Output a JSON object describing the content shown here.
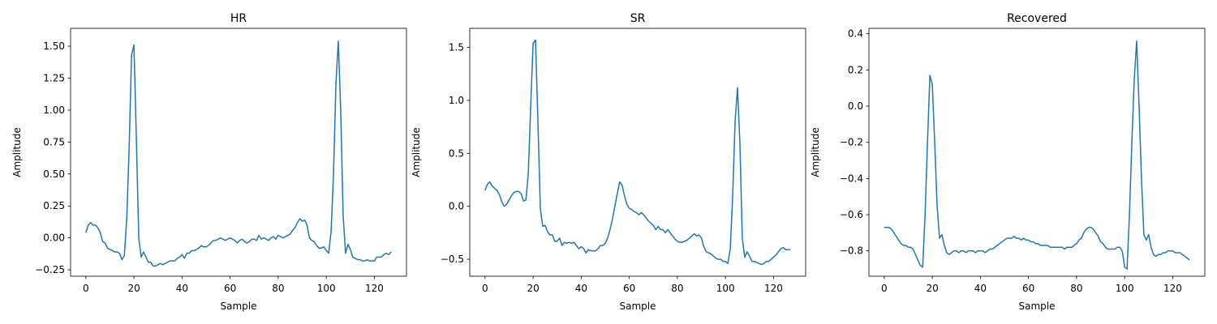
{
  "chart_data": [
    {
      "type": "line",
      "title": "HR",
      "xlabel": "Sample",
      "ylabel": "Amplitude",
      "color": "#1f77b4",
      "xlim": [
        -6.35,
        133.35
      ],
      "ylim": [
        -0.3,
        1.64
      ],
      "xticks": [
        0,
        20,
        40,
        60,
        80,
        100,
        120
      ],
      "yticks": [
        {
          "value": -0.25,
          "label": "−0.25"
        },
        {
          "value": 0,
          "label": "0.00"
        },
        0.25,
        {
          "value": 0.5,
          "label": "0.50"
        },
        0.75,
        {
          "value": 1,
          "label": "1.00"
        },
        1.25,
        {
          "value": 1.5,
          "label": "1.50"
        }
      ],
      "x": [
        0,
        1,
        2,
        3,
        4,
        5,
        6,
        7,
        8,
        9,
        10,
        11,
        12,
        13,
        14,
        15,
        16,
        17,
        18,
        19,
        20,
        21,
        22,
        23,
        24,
        25,
        26,
        27,
        28,
        29,
        30,
        31,
        32,
        33,
        34,
        35,
        36,
        37,
        38,
        39,
        40,
        41,
        42,
        43,
        44,
        45,
        46,
        47,
        48,
        49,
        50,
        51,
        52,
        53,
        54,
        55,
        56,
        57,
        58,
        59,
        60,
        61,
        62,
        63,
        64,
        65,
        66,
        67,
        68,
        69,
        70,
        71,
        72,
        73,
        74,
        75,
        76,
        77,
        78,
        79,
        80,
        81,
        82,
        83,
        84,
        85,
        86,
        87,
        88,
        89,
        90,
        91,
        92,
        93,
        94,
        95,
        96,
        97,
        98,
        99,
        100,
        101,
        102,
        103,
        104,
        105,
        106,
        107,
        108,
        109,
        110,
        111,
        112,
        113,
        114,
        115,
        116,
        117,
        118,
        119,
        120,
        121,
        122,
        123,
        124,
        125,
        126,
        127
      ],
      "values": [
        0.04,
        0.1,
        0.12,
        0.1,
        0.1,
        0.08,
        0.04,
        -0.03,
        -0.04,
        -0.08,
        -0.09,
        -0.1,
        -0.11,
        -0.11,
        -0.12,
        -0.17,
        -0.14,
        0.15,
        0.7,
        1.43,
        1.51,
        0.78,
        0.0,
        -0.15,
        -0.11,
        -0.15,
        -0.19,
        -0.19,
        -0.22,
        -0.22,
        -0.21,
        -0.2,
        -0.21,
        -0.2,
        -0.19,
        -0.18,
        -0.18,
        -0.18,
        -0.16,
        -0.15,
        -0.13,
        -0.16,
        -0.12,
        -0.12,
        -0.1,
        -0.1,
        -0.09,
        -0.08,
        -0.06,
        -0.07,
        -0.07,
        -0.06,
        -0.04,
        -0.02,
        -0.02,
        -0.01,
        0.0,
        -0.01,
        -0.02,
        -0.01,
        0.0,
        -0.01,
        -0.02,
        -0.04,
        -0.02,
        -0.01,
        -0.03,
        -0.04,
        -0.03,
        -0.01,
        -0.01,
        -0.02,
        0.02,
        -0.01,
        0.0,
        -0.01,
        -0.02,
        0.0,
        0.01,
        -0.01,
        0.02,
        0.01,
        0.0,
        0.01,
        0.02,
        0.03,
        0.06,
        0.08,
        0.12,
        0.15,
        0.13,
        0.14,
        0.1,
        0.0,
        -0.02,
        -0.03,
        -0.06,
        -0.08,
        -0.08,
        -0.07,
        -0.1,
        -0.12,
        0.05,
        0.5,
        1.2,
        1.54,
        1.0,
        0.18,
        -0.12,
        -0.05,
        -0.09,
        -0.15,
        -0.16,
        -0.17,
        -0.17,
        -0.18,
        -0.18,
        -0.17,
        -0.18,
        -0.18,
        -0.18,
        -0.15,
        -0.15,
        -0.15,
        -0.13,
        -0.12,
        -0.13,
        -0.11
      ]
    },
    {
      "type": "line",
      "title": "SR",
      "xlabel": "Sample",
      "ylabel": "Amplitude",
      "color": "#1f77b4",
      "xlim": [
        -6.35,
        133.35
      ],
      "ylim": [
        -0.66,
        1.68
      ],
      "xticks": [
        0,
        20,
        40,
        60,
        80,
        100,
        120
      ],
      "yticks": [
        {
          "value": -0.5,
          "label": "−0.5"
        },
        {
          "value": 0,
          "label": "0.0"
        },
        0.5,
        {
          "value": 1,
          "label": "1.0"
        },
        1.5
      ],
      "x": [
        0,
        1,
        2,
        3,
        4,
        5,
        6,
        7,
        8,
        9,
        10,
        11,
        12,
        13,
        14,
        15,
        16,
        17,
        18,
        19,
        20,
        21,
        22,
        23,
        24,
        25,
        26,
        27,
        28,
        29,
        30,
        31,
        32,
        33,
        34,
        35,
        36,
        37,
        38,
        39,
        40,
        41,
        42,
        43,
        44,
        45,
        46,
        47,
        48,
        49,
        50,
        51,
        52,
        53,
        54,
        55,
        56,
        57,
        58,
        59,
        60,
        61,
        62,
        63,
        64,
        65,
        66,
        67,
        68,
        69,
        70,
        71,
        72,
        73,
        74,
        75,
        76,
        77,
        78,
        79,
        80,
        81,
        82,
        83,
        84,
        85,
        86,
        87,
        88,
        89,
        90,
        91,
        92,
        93,
        94,
        95,
        96,
        97,
        98,
        99,
        100,
        101,
        102,
        103,
        104,
        105,
        106,
        107,
        108,
        109,
        110,
        111,
        112,
        113,
        114,
        115,
        116,
        117,
        118,
        119,
        120,
        121,
        122,
        123,
        124,
        125,
        126,
        127
      ],
      "values": [
        0.15,
        0.21,
        0.23,
        0.19,
        0.17,
        0.15,
        0.11,
        0.04,
        0.0,
        0.02,
        0.06,
        0.1,
        0.13,
        0.14,
        0.14,
        0.12,
        0.05,
        0.06,
        0.31,
        0.95,
        1.54,
        1.57,
        0.8,
        -0.02,
        -0.19,
        -0.18,
        -0.24,
        -0.27,
        -0.27,
        -0.33,
        -0.33,
        -0.3,
        -0.37,
        -0.34,
        -0.35,
        -0.34,
        -0.35,
        -0.34,
        -0.37,
        -0.4,
        -0.38,
        -0.4,
        -0.44,
        -0.41,
        -0.42,
        -0.42,
        -0.42,
        -0.4,
        -0.37,
        -0.37,
        -0.35,
        -0.3,
        -0.22,
        -0.12,
        0.0,
        0.12,
        0.23,
        0.2,
        0.1,
        0.02,
        -0.02,
        -0.03,
        -0.05,
        -0.06,
        -0.08,
        -0.06,
        -0.08,
        -0.11,
        -0.14,
        -0.16,
        -0.18,
        -0.22,
        -0.19,
        -0.22,
        -0.22,
        -0.25,
        -0.22,
        -0.25,
        -0.28,
        -0.31,
        -0.33,
        -0.34,
        -0.34,
        -0.33,
        -0.32,
        -0.3,
        -0.28,
        -0.26,
        -0.28,
        -0.27,
        -0.3,
        -0.38,
        -0.43,
        -0.44,
        -0.45,
        -0.47,
        -0.49,
        -0.5,
        -0.5,
        -0.52,
        -0.52,
        -0.54,
        -0.4,
        0.1,
        0.8,
        1.12,
        0.6,
        -0.3,
        -0.48,
        -0.43,
        -0.47,
        -0.52,
        -0.52,
        -0.53,
        -0.54,
        -0.55,
        -0.54,
        -0.52,
        -0.52,
        -0.5,
        -0.48,
        -0.46,
        -0.43,
        -0.4,
        -0.39,
        -0.41,
        -0.41,
        -0.41
      ]
    },
    {
      "type": "line",
      "title": "Recovered",
      "xlabel": "Sample",
      "ylabel": "Amplitude",
      "color": "#1f77b4",
      "xlim": [
        -6.35,
        133.35
      ],
      "ylim": [
        -0.94,
        0.43
      ],
      "xticks": [
        0,
        20,
        40,
        60,
        80,
        100,
        120
      ],
      "yticks": [
        {
          "value": -0.8,
          "label": "−0.8"
        },
        {
          "value": -0.6,
          "label": "−0.6"
        },
        {
          "value": -0.4,
          "label": "−0.4"
        },
        {
          "value": -0.2,
          "label": "−0.2"
        },
        {
          "value": 0,
          "label": "0.0"
        },
        0.2,
        0.4
      ],
      "x": [
        0,
        1,
        2,
        3,
        4,
        5,
        6,
        7,
        8,
        9,
        10,
        11,
        12,
        13,
        14,
        15,
        16,
        17,
        18,
        19,
        20,
        21,
        22,
        23,
        24,
        25,
        26,
        27,
        28,
        29,
        30,
        31,
        32,
        33,
        34,
        35,
        36,
        37,
        38,
        39,
        40,
        41,
        42,
        43,
        44,
        45,
        46,
        47,
        48,
        49,
        50,
        51,
        52,
        53,
        54,
        55,
        56,
        57,
        58,
        59,
        60,
        61,
        62,
        63,
        64,
        65,
        66,
        67,
        68,
        69,
        70,
        71,
        72,
        73,
        74,
        75,
        76,
        77,
        78,
        79,
        80,
        81,
        82,
        83,
        84,
        85,
        86,
        87,
        88,
        89,
        90,
        91,
        92,
        93,
        94,
        95,
        96,
        97,
        98,
        99,
        100,
        101,
        102,
        103,
        104,
        105,
        106,
        107,
        108,
        109,
        110,
        111,
        112,
        113,
        114,
        115,
        116,
        117,
        118,
        119,
        120,
        121,
        122,
        123,
        124,
        125,
        126,
        127
      ],
      "values": [
        -0.67,
        -0.67,
        -0.67,
        -0.68,
        -0.7,
        -0.72,
        -0.74,
        -0.76,
        -0.77,
        -0.77,
        -0.78,
        -0.78,
        -0.79,
        -0.82,
        -0.85,
        -0.88,
        -0.89,
        -0.6,
        -0.2,
        0.17,
        0.12,
        -0.2,
        -0.55,
        -0.73,
        -0.71,
        -0.77,
        -0.81,
        -0.82,
        -0.81,
        -0.8,
        -0.8,
        -0.81,
        -0.8,
        -0.8,
        -0.81,
        -0.8,
        -0.8,
        -0.8,
        -0.81,
        -0.8,
        -0.8,
        -0.8,
        -0.81,
        -0.8,
        -0.79,
        -0.79,
        -0.78,
        -0.77,
        -0.76,
        -0.75,
        -0.74,
        -0.73,
        -0.73,
        -0.73,
        -0.72,
        -0.73,
        -0.73,
        -0.74,
        -0.73,
        -0.74,
        -0.74,
        -0.75,
        -0.75,
        -0.76,
        -0.76,
        -0.77,
        -0.77,
        -0.77,
        -0.77,
        -0.78,
        -0.78,
        -0.78,
        -0.78,
        -0.78,
        -0.78,
        -0.79,
        -0.78,
        -0.78,
        -0.78,
        -0.77,
        -0.76,
        -0.74,
        -0.73,
        -0.7,
        -0.68,
        -0.67,
        -0.67,
        -0.68,
        -0.7,
        -0.72,
        -0.75,
        -0.76,
        -0.78,
        -0.79,
        -0.79,
        -0.79,
        -0.79,
        -0.78,
        -0.78,
        -0.8,
        -0.89,
        -0.9,
        -0.6,
        -0.2,
        0.15,
        0.36,
        0.0,
        -0.4,
        -0.71,
        -0.74,
        -0.71,
        -0.78,
        -0.82,
        -0.83,
        -0.82,
        -0.82,
        -0.81,
        -0.81,
        -0.8,
        -0.8,
        -0.8,
        -0.81,
        -0.81,
        -0.81,
        -0.82,
        -0.83,
        -0.84,
        -0.85
      ]
    }
  ]
}
